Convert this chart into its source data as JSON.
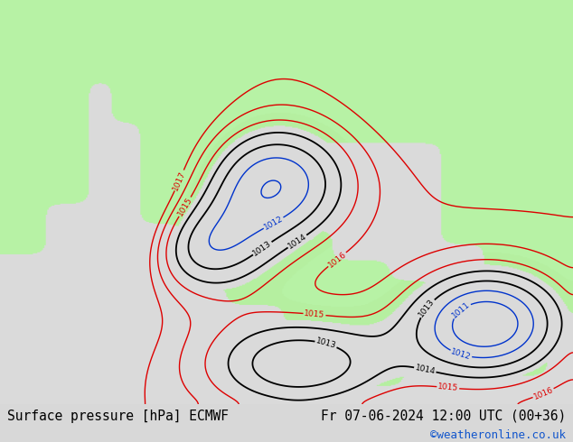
{
  "title_left": "Surface pressure [hPa] ECMWF",
  "title_right": "Fr 07-06-2024 12:00 UTC (00+36)",
  "credit": "©weatheronline.co.uk",
  "title_fontsize": 10.5,
  "credit_fontsize": 9,
  "figsize": [
    6.34,
    4.9
  ],
  "dpi": 100,
  "bg_color": "#d8d8d8",
  "sea_color": [
    0.855,
    0.855,
    0.855
  ],
  "land_green": [
    0.71,
    0.94,
    0.63
  ],
  "contour_red": "#dd0000",
  "contour_black": "#000000",
  "contour_blue": "#0033cc"
}
